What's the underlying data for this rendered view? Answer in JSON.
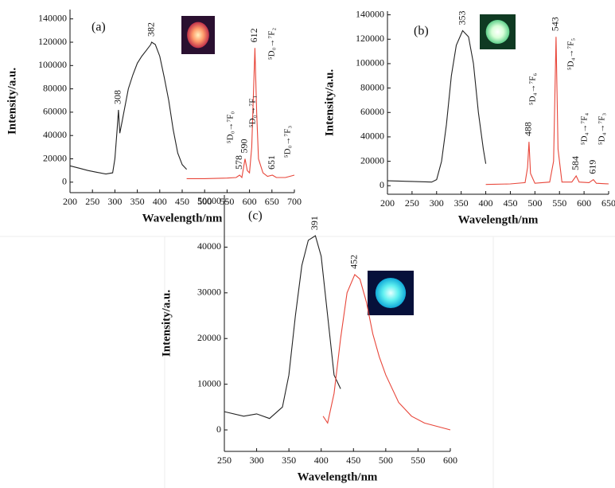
{
  "chart_data": [
    {
      "type": "line",
      "label": "(a)",
      "x_label": "Wavelength/nm",
      "y_label": "Intensity/a.u.",
      "xlim": [
        200,
        700
      ],
      "xticks": [
        200,
        250,
        300,
        350,
        400,
        450,
        500,
        550,
        600,
        650,
        700
      ],
      "ylim": [
        -9000,
        148000
      ],
      "yticks": [
        0,
        20000,
        40000,
        60000,
        80000,
        100000,
        120000,
        140000
      ],
      "series": [
        {
          "color": "#222222",
          "x": [
            200,
            220,
            240,
            260,
            280,
            295,
            300,
            305,
            308,
            311,
            315,
            320,
            330,
            340,
            350,
            360,
            370,
            380,
            382,
            390,
            400,
            410,
            420,
            430,
            440,
            450,
            460
          ],
          "values": [
            14000,
            12000,
            10000,
            8500,
            7000,
            8000,
            20000,
            45000,
            62000,
            42000,
            50000,
            60000,
            80000,
            92000,
            102000,
            108000,
            113000,
            118000,
            120000,
            118000,
            108000,
            90000,
            70000,
            45000,
            25000,
            15000,
            11000
          ]
        },
        {
          "color": "#e8463a",
          "x": [
            460,
            500,
            550,
            570,
            578,
            583,
            590,
            595,
            600,
            605,
            612,
            616,
            620,
            630,
            640,
            651,
            660,
            680,
            700
          ],
          "values": [
            3000,
            3000,
            3500,
            4000,
            6000,
            4000,
            20000,
            10000,
            8000,
            30000,
            115000,
            60000,
            20000,
            8000,
            5000,
            6000,
            4000,
            4000,
            6000
          ]
        }
      ],
      "peaks": [
        308,
        382,
        578,
        590,
        612,
        651
      ],
      "transitions": [
        "⁵D₀→⁷F₀",
        "⁵D₀→⁷F₁",
        "⁵D₀→⁷F₂",
        "⁵D₀→⁷F₃"
      ]
    },
    {
      "type": "line",
      "label": "(b)",
      "x_label": "Wavelength/nm",
      "y_label": "Intensity/a.u.",
      "xlim": [
        200,
        650
      ],
      "xticks": [
        200,
        250,
        300,
        350,
        400,
        450,
        500,
        550,
        600,
        650
      ],
      "ylim": [
        -7000,
        143000
      ],
      "yticks": [
        0,
        20000,
        40000,
        60000,
        80000,
        100000,
        120000,
        140000
      ],
      "series": [
        {
          "color": "#222222",
          "x": [
            200,
            250,
            290,
            300,
            310,
            320,
            330,
            340,
            353,
            365,
            375,
            385,
            395,
            400
          ],
          "values": [
            4000,
            3500,
            3000,
            5000,
            20000,
            50000,
            90000,
            115000,
            127000,
            122000,
            100000,
            60000,
            30000,
            18000
          ]
        },
        {
          "color": "#e8463a",
          "x": [
            400,
            450,
            480,
            485,
            488,
            491,
            500,
            530,
            538,
            543,
            547,
            555,
            575,
            584,
            590,
            610,
            619,
            625,
            650
          ],
          "values": [
            1000,
            1500,
            2500,
            15000,
            36000,
            10000,
            2000,
            3000,
            20000,
            122000,
            30000,
            3000,
            3000,
            8000,
            3000,
            2500,
            5000,
            2000,
            1500
          ]
        }
      ],
      "peaks": [
        353,
        488,
        543,
        584,
        619
      ],
      "transitions": [
        "⁵D₄→⁷F₆",
        "⁵D₄→⁷F₅",
        "⁵D₄→⁷F₄",
        "⁵D₄→⁷F₃"
      ]
    },
    {
      "type": "line",
      "label": "(c)",
      "x_label": "Wavelength/nm",
      "y_label": "Intensity/a.u.",
      "xlim": [
        250,
        600
      ],
      "xticks": [
        250,
        300,
        350,
        400,
        450,
        500,
        550,
        600
      ],
      "ylim": [
        -4700,
        51400
      ],
      "yticks": [
        0,
        10000,
        20000,
        30000,
        40000,
        50000
      ],
      "series": [
        {
          "color": "#222222",
          "x": [
            250,
            280,
            300,
            320,
            340,
            350,
            360,
            370,
            380,
            391,
            400,
            410,
            420,
            430
          ],
          "values": [
            4000,
            3000,
            3500,
            2500,
            5000,
            12000,
            25000,
            36000,
            41500,
            42500,
            38000,
            25000,
            12000,
            9000
          ]
        },
        {
          "color": "#e8463a",
          "x": [
            403,
            410,
            420,
            430,
            440,
            452,
            460,
            470,
            480,
            490,
            500,
            520,
            540,
            560,
            600
          ],
          "values": [
            3000,
            1500,
            8000,
            20000,
            30000,
            34000,
            33000,
            28000,
            21000,
            16000,
            12000,
            6000,
            3000,
            1500,
            0
          ]
        }
      ],
      "peaks": [
        391,
        452
      ],
      "transitions": []
    }
  ]
}
